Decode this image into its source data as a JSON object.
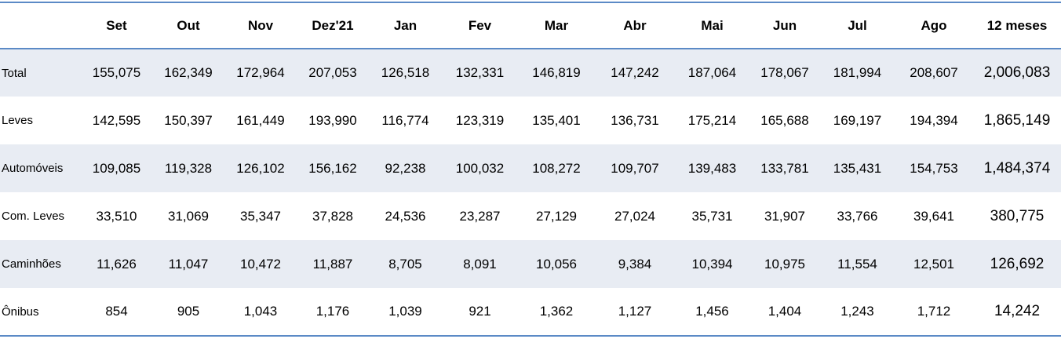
{
  "table": {
    "headers": [
      "",
      "Set",
      "Out",
      "Nov",
      "Dez'21",
      "Jan",
      "Fev",
      "Mar",
      "Abr",
      "Mai",
      "Jun",
      "Jul",
      "Ago",
      "12 meses"
    ],
    "rows": [
      {
        "label": "Total",
        "values": [
          "155,075",
          "162,349",
          "172,964",
          "207,053",
          "126,518",
          "132,331",
          "146,819",
          "147,242",
          "187,064",
          "178,067",
          "181,994",
          "208,607",
          "2,006,083"
        ]
      },
      {
        "label": "Leves",
        "values": [
          "142,595",
          "150,397",
          "161,449",
          "193,990",
          "116,774",
          "123,319",
          "135,401",
          "136,731",
          "175,214",
          "165,688",
          "169,197",
          "194,394",
          "1,865,149"
        ]
      },
      {
        "label": "Automóveis",
        "values": [
          "109,085",
          "119,328",
          "126,102",
          "156,162",
          "92,238",
          "100,032",
          "108,272",
          "109,707",
          "139,483",
          "133,781",
          "135,431",
          "154,753",
          "1,484,374"
        ]
      },
      {
        "label": "Com. Leves",
        "values": [
          "33,510",
          "31,069",
          "35,347",
          "37,828",
          "24,536",
          "23,287",
          "27,129",
          "27,024",
          "35,731",
          "31,907",
          "33,766",
          "39,641",
          "380,775"
        ]
      },
      {
        "label": "Caminhões",
        "values": [
          "11,626",
          "11,047",
          "10,472",
          "11,887",
          "8,705",
          "8,091",
          "10,056",
          "9,384",
          "10,394",
          "10,975",
          "11,554",
          "12,501",
          "126,692"
        ]
      },
      {
        "label": "Ônibus",
        "values": [
          "854",
          "905",
          "1,043",
          "1,176",
          "1,039",
          "921",
          "1,362",
          "1,127",
          "1,456",
          "1,404",
          "1,243",
          "1,712",
          "14,242"
        ]
      }
    ]
  },
  "colors": {
    "border": "#5b8ac6",
    "shaded_row": "#e8ecf3"
  }
}
